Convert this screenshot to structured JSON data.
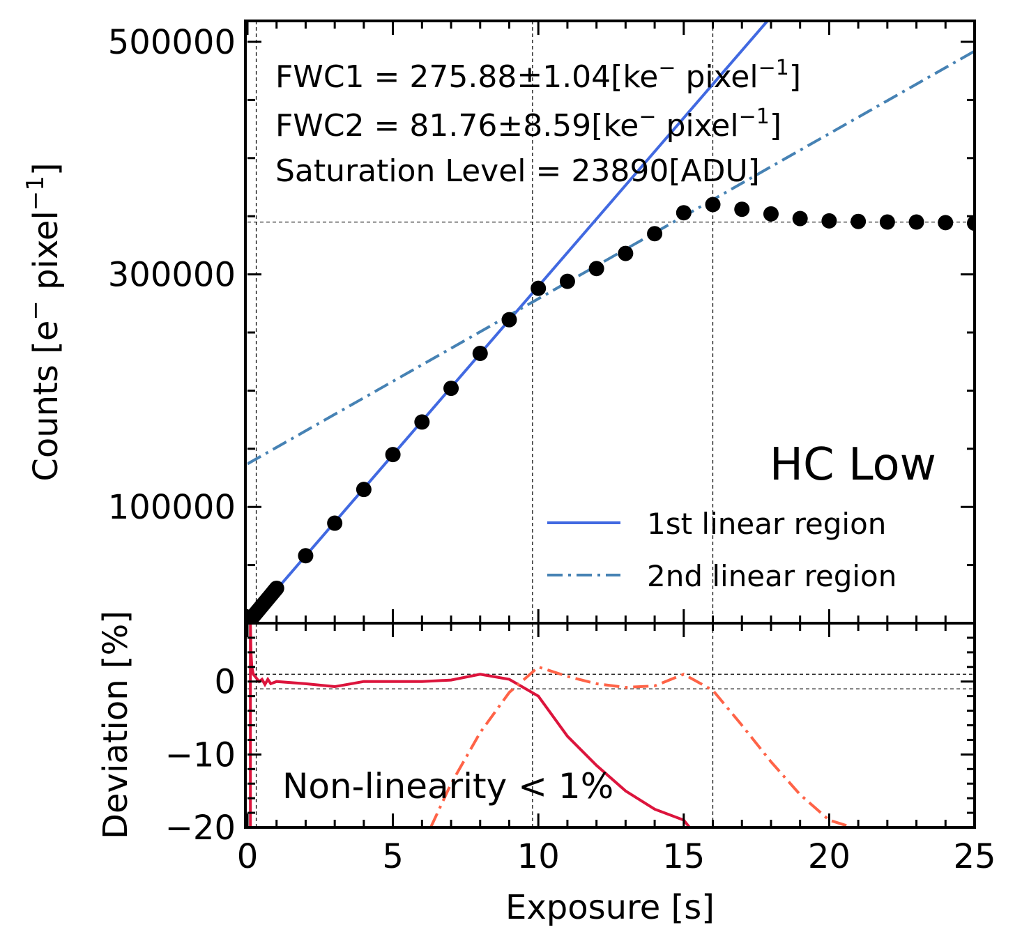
{
  "chart_data": [
    {
      "type": "scatter",
      "panel": "top",
      "xlabel": "",
      "ylabel_main": "Counts [e",
      "ylabel_sup1": "−",
      "ylabel_mid": " pixel",
      "ylabel_sup2": "−1",
      "ylabel_end": "]",
      "xlim": [
        0,
        25
      ],
      "ylim": [
        0,
        520000
      ],
      "yticks": [
        100000,
        300000,
        500000
      ],
      "ytick_labels": [
        "100000",
        "300000",
        "500000"
      ],
      "xticks": [
        0,
        5,
        10,
        15,
        20,
        25
      ],
      "grid": false,
      "legend_position": "bottom-right",
      "legend_title": "HC Low",
      "annotations": {
        "fwc1_prefix": "FWC1 = 275.88±1.04[ke",
        "fwc1_sup1": "−",
        "fwc1_mid": " pixel",
        "fwc1_sup2": "−1",
        "fwc1_end": "]",
        "fwc2_prefix": "FWC2 = 81.76±8.59[ke",
        "fwc2_sup1": "−",
        "fwc2_mid": " pixel",
        "fwc2_sup2": "−1",
        "fwc2_end": "]",
        "saturation": "Saturation Level = 23890[ADU]"
      },
      "reference_lines": {
        "vertical_x": [
          0.3,
          9.8,
          16
        ],
        "horizontal_y": [
          345000
        ]
      },
      "points": {
        "x": [
          0.05,
          0.1,
          0.15,
          0.2,
          0.25,
          0.3,
          0.35,
          0.4,
          0.45,
          0.5,
          0.55,
          0.6,
          0.65,
          0.7,
          0.75,
          0.8,
          0.85,
          0.9,
          0.95,
          1,
          2,
          3,
          4,
          5,
          6,
          7,
          8,
          9,
          10,
          11,
          12,
          13,
          14,
          15,
          16,
          17,
          18,
          19,
          20,
          21,
          22,
          23,
          24,
          25
        ],
        "y": [
          1500,
          3000,
          4500,
          6000,
          7500,
          9000,
          10500,
          12000,
          13500,
          15000,
          16500,
          18000,
          19500,
          21000,
          22500,
          24000,
          25500,
          27000,
          28500,
          30000,
          58000,
          86000,
          115000,
          145000,
          173000,
          202000,
          232000,
          261000,
          288000,
          294000,
          305000,
          318000,
          335000,
          353000,
          360000,
          356000,
          352000,
          348000,
          346000,
          345500,
          345000,
          345000,
          344500,
          344000
        ]
      },
      "series": [
        {
          "name": "1st linear region",
          "color": "#4169e1",
          "style": "solid",
          "x": [
            0,
            18
          ],
          "y": [
            0,
            521500
          ]
        },
        {
          "name": "2nd linear region",
          "color": "#4682b4",
          "style": "dashdot",
          "x": [
            0,
            25
          ],
          "y": [
            137000,
            492000
          ]
        }
      ]
    },
    {
      "type": "line",
      "panel": "bottom",
      "xlabel": "Exposure [s]",
      "ylabel": "Deviation [%]",
      "xlim": [
        0,
        25
      ],
      "ylim": [
        -20,
        8
      ],
      "yticks": [
        0,
        -10,
        -20
      ],
      "ytick_labels": [
        "0",
        "−10",
        "−20"
      ],
      "xticks": [
        0,
        5,
        10,
        15,
        20,
        25
      ],
      "xtick_labels": [
        "0",
        "5",
        "10",
        "15",
        "20",
        "25"
      ],
      "grid": false,
      "reference_lines": {
        "vertical_x": [
          0.3,
          9.8,
          16
        ],
        "horizontal_y": [
          1,
          -1
        ]
      },
      "annotation": "Non-linearity < 1%",
      "series": [
        {
          "color": "#dc143c",
          "style": "solid",
          "x": [
            0.1,
            0.1,
            0.12,
            0.15,
            0.2,
            0.3,
            0.4,
            0.5,
            0.6,
            0.7,
            0.8,
            1,
            2,
            3,
            4,
            5,
            6,
            7,
            8,
            9,
            10,
            11,
            12,
            13,
            14,
            15,
            15.2
          ],
          "y": [
            -20,
            8,
            4,
            2,
            1,
            0.5,
            0,
            0.3,
            -0.4,
            0.3,
            -0.3,
            0,
            -0.3,
            -0.7,
            0,
            0,
            0,
            0.2,
            1,
            0.3,
            -2,
            -7.5,
            -11.5,
            -15,
            -17.5,
            -19,
            -20
          ]
        },
        {
          "color": "#ff6347",
          "style": "dashdot",
          "x": [
            6.3,
            7,
            8,
            9,
            10,
            11,
            12,
            13,
            14,
            15,
            16,
            17,
            18,
            19,
            20,
            20.8
          ],
          "y": [
            -20,
            -14,
            -7,
            -1.5,
            2,
            0.7,
            -0.3,
            -0.8,
            -0.6,
            1,
            -1.2,
            -6,
            -11,
            -15.5,
            -19,
            -20
          ]
        }
      ]
    }
  ]
}
